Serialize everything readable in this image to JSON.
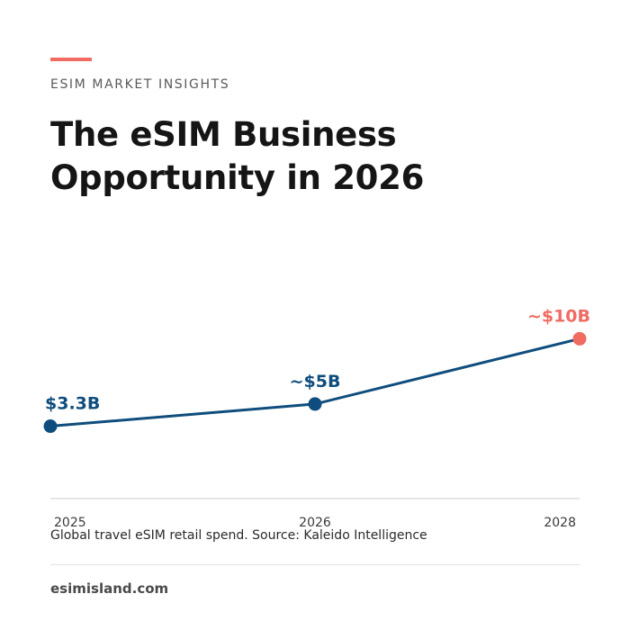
{
  "header": {
    "eyebrow": "ESIM MARKET INSIGHTS",
    "title_line1": "The eSIM Business",
    "title_line2": "Opportunity in 2026"
  },
  "caption": "Global travel eSIM retail spend. Source: Kaleido Intelligence",
  "footer": {
    "site": "esimisland.com"
  },
  "colors": {
    "series": "#0e4d7d",
    "highlight": "#f06b62",
    "accent": "#f06b62",
    "axis": "#dddddd"
  },
  "chart_data": {
    "type": "line",
    "title": "",
    "xlabel": "",
    "ylabel": "",
    "x": [
      2025,
      2026,
      2028
    ],
    "x_tick_labels": [
      "2025",
      "2026",
      "2028"
    ],
    "series": [
      {
        "values": [
          3.3,
          5,
          10
        ],
        "point_labels": [
          "$3.3B",
          "~$5B",
          "~$10B"
        ],
        "highlight_index": 2
      }
    ],
    "grid": false
  }
}
